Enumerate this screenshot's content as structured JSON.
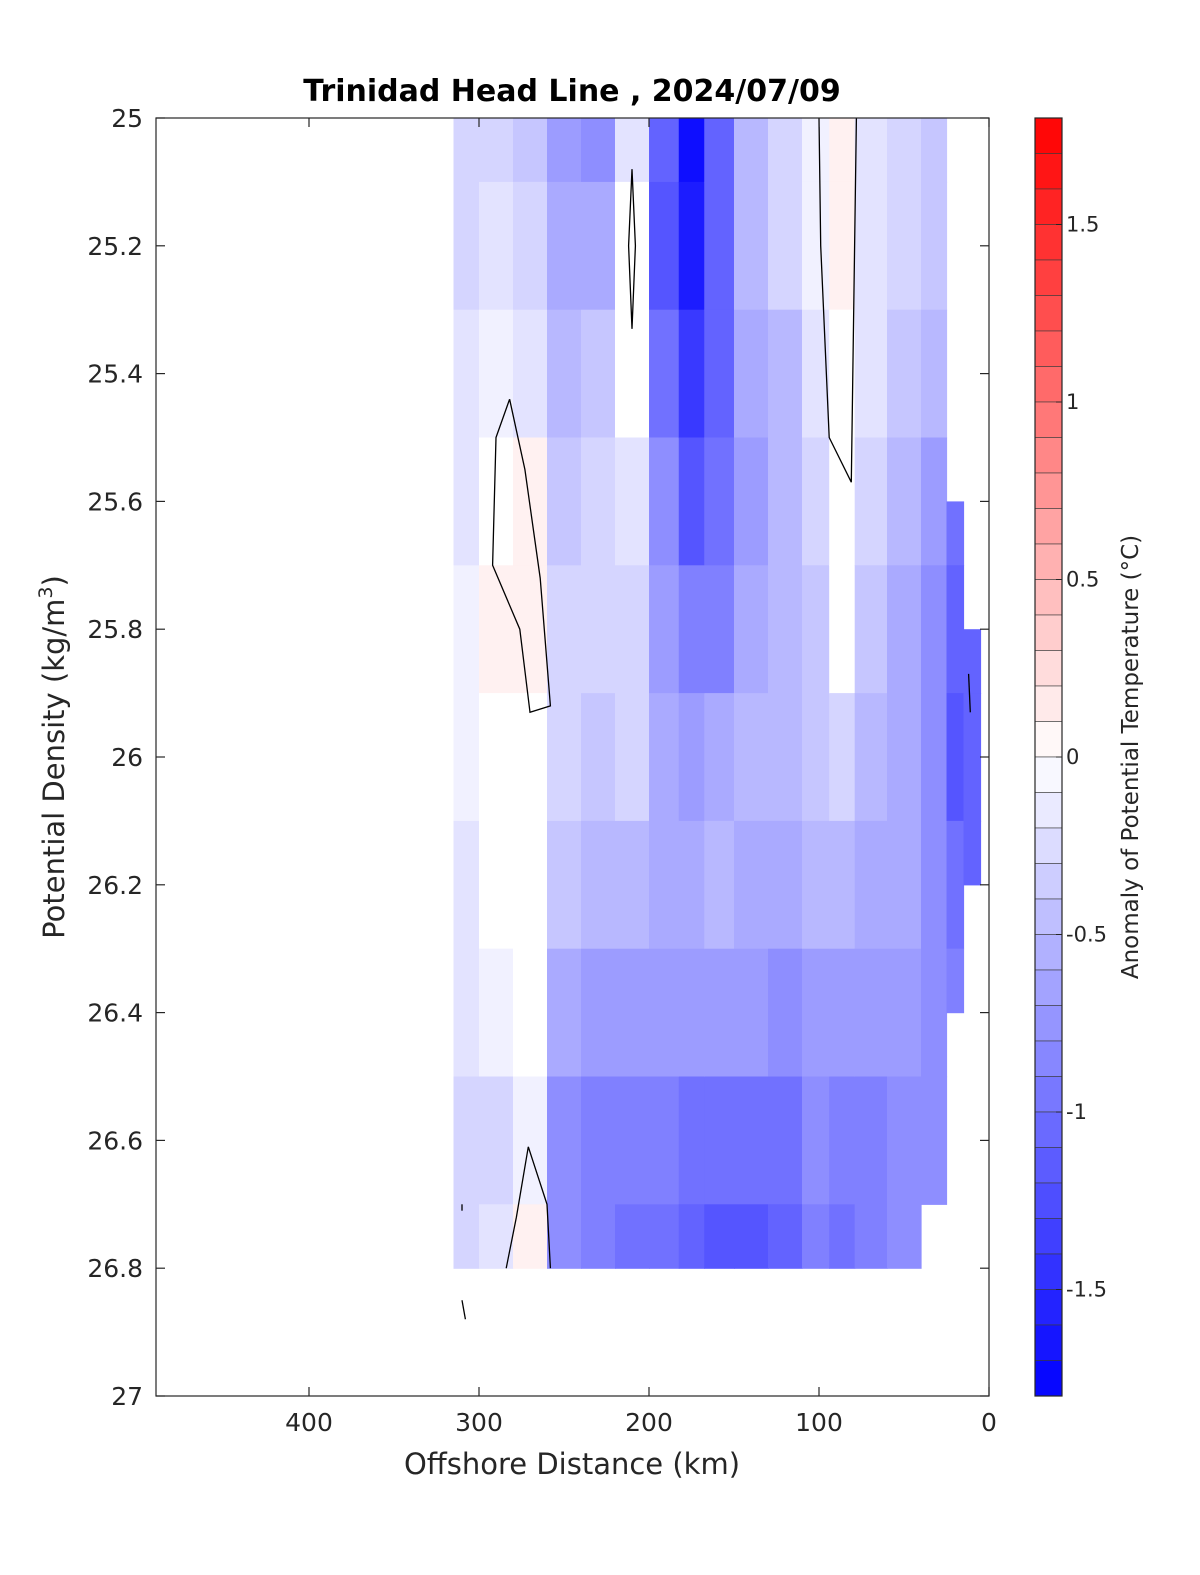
{
  "chart_data": {
    "type": "heatmap",
    "title": "Trinidad Head Line , 2024/07/09",
    "xlabel": "Offshore Distance (km)",
    "ylabel": "Potential Density (kg/m",
    "ylabel_sup": "3",
    "ylabel_end": ")",
    "colorbar_label": "Anomaly of Potential Temperature (°C)",
    "xlim": [
      490,
      0
    ],
    "ylim": [
      25,
      27
    ],
    "x_reversed": true,
    "y_reversed": true,
    "xticks": [
      400,
      300,
      200,
      100,
      0
    ],
    "xtick_labels": [
      "400",
      "300",
      "200",
      "100",
      "0"
    ],
    "yticks": [
      25,
      25.2,
      25.4,
      25.6,
      25.8,
      26,
      26.2,
      26.4,
      26.6,
      26.8,
      27
    ],
    "ytick_labels": [
      "25",
      "25.2",
      "25.4",
      "25.6",
      "25.8",
      "26",
      "26.2",
      "26.4",
      "26.6",
      "26.8",
      "27"
    ],
    "colorbar": {
      "range": [
        -1.8,
        1.8
      ],
      "step": 0.1,
      "ticks": [
        1.5,
        1,
        0.5,
        0,
        -0.5,
        -1,
        -1.5
      ],
      "tick_labels": [
        "1.5",
        "1",
        "0.5",
        "0",
        "-0.5",
        "-1",
        "-1.5"
      ],
      "cold_color": "#0000ff",
      "warm_color": "#ff0000",
      "neutral_color": "#ffffff"
    },
    "grid": false,
    "columns": [
      {
        "x": 310,
        "top": 25.0,
        "bottom": 26.8,
        "values": [
          -0.35,
          -0.3,
          -0.25,
          -0.2,
          -0.15,
          -0.15,
          -0.2,
          -0.25,
          -0.3,
          -0.35,
          -0.35
        ]
      },
      {
        "x": 290,
        "top": 25.0,
        "bottom": 26.8,
        "values": [
          -0.3,
          -0.2,
          -0.1,
          0.0,
          0.05,
          0.0,
          -0.05,
          -0.15,
          -0.3,
          -0.2,
          -0.2
        ]
      },
      {
        "x": 270,
        "top": 25.0,
        "bottom": 26.8,
        "values": [
          -0.45,
          -0.35,
          -0.2,
          0.05,
          0.1,
          0.0,
          0.0,
          -0.05,
          -0.1,
          0.05,
          -0.05
        ]
      },
      {
        "x": 250,
        "top": 25.0,
        "bottom": 26.8,
        "values": [
          -0.7,
          -0.6,
          -0.5,
          -0.4,
          -0.35,
          -0.3,
          -0.4,
          -0.6,
          -0.8,
          -0.8,
          -0.7
        ]
      },
      {
        "x": 230,
        "top": 25.0,
        "bottom": 26.8,
        "values": [
          -0.8,
          -0.6,
          -0.4,
          -0.35,
          -0.3,
          -0.4,
          -0.55,
          -0.75,
          -0.9,
          -0.95,
          -0.9
        ]
      },
      {
        "x": 210,
        "top": 25.0,
        "bottom": 26.8,
        "values": [
          -0.25,
          0.0,
          0.0,
          -0.2,
          -0.3,
          -0.35,
          -0.5,
          -0.75,
          -0.9,
          -1.0,
          -1.0
        ]
      },
      {
        "x": 190,
        "top": 25.0,
        "bottom": 26.8,
        "values": [
          -1.1,
          -1.2,
          -1.0,
          -0.8,
          -0.7,
          -0.6,
          -0.6,
          -0.75,
          -0.95,
          -1.05,
          -1.05
        ]
      },
      {
        "x": 175,
        "top": 25.0,
        "bottom": 26.8,
        "values": [
          -1.7,
          -1.6,
          -1.4,
          -1.2,
          -0.9,
          -0.7,
          -0.6,
          -0.75,
          -1.0,
          -1.1,
          -1.05
        ]
      },
      {
        "x": 160,
        "top": 25.0,
        "bottom": 26.8,
        "values": [
          -1.1,
          -1.1,
          -1.1,
          -1.0,
          -0.9,
          -0.6,
          -0.55,
          -0.7,
          -1.0,
          -1.2,
          -1.1
        ]
      },
      {
        "x": 140,
        "top": 25.0,
        "bottom": 26.8,
        "values": [
          -0.5,
          -0.55,
          -0.6,
          -0.7,
          -0.6,
          -0.55,
          -0.6,
          -0.75,
          -1.05,
          -1.2,
          -1.1
        ]
      },
      {
        "x": 120,
        "top": 25.0,
        "bottom": 26.8,
        "values": [
          -0.3,
          -0.35,
          -0.5,
          -0.55,
          -0.5,
          -0.5,
          -0.6,
          -0.8,
          -1.0,
          -1.1,
          -1.0
        ]
      },
      {
        "x": 100,
        "top": 25.0,
        "bottom": 26.8,
        "values": [
          -0.1,
          -0.1,
          -0.2,
          -0.3,
          -0.4,
          -0.45,
          -0.55,
          -0.7,
          -0.85,
          -0.95,
          -0.9
        ]
      },
      {
        "x": 88,
        "top": 25.0,
        "bottom": 26.8,
        "values": [
          0.1,
          0.05,
          0.0,
          0.0,
          -0.05,
          -0.3,
          -0.5,
          -0.7,
          -0.9,
          -1.0,
          -0.95
        ]
      },
      {
        "x": 70,
        "top": 25.0,
        "bottom": 26.8,
        "values": [
          -0.2,
          -0.2,
          -0.25,
          -0.3,
          -0.4,
          -0.5,
          -0.6,
          -0.75,
          -0.9,
          -0.95,
          -0.9
        ]
      },
      {
        "x": 50,
        "top": 25.0,
        "bottom": 26.8,
        "values": [
          -0.3,
          -0.35,
          -0.4,
          -0.5,
          -0.6,
          -0.6,
          -0.65,
          -0.75,
          -0.85,
          -0.85,
          -0.8
        ]
      },
      {
        "x": 30,
        "top": 25.0,
        "bottom": 26.7,
        "values": [
          -0.4,
          -0.45,
          -0.55,
          -0.7,
          -0.8,
          -0.85,
          -0.8,
          -0.8,
          -0.8,
          -0.8,
          -0.8
        ]
      },
      {
        "x": 20,
        "top": 25.6,
        "bottom": 26.4,
        "values": [
          -0.8,
          -0.85,
          -0.9,
          -1.0,
          -1.1,
          -1.2,
          -1.05,
          -0.9,
          -0.8,
          -0.8,
          -0.8
        ]
      },
      {
        "x": 10,
        "top": 25.8,
        "bottom": 26.2,
        "values": [
          -0.8,
          -0.85,
          -0.9,
          -1.0,
          -1.1,
          -1.15,
          -1.1,
          -1.0,
          -0.9,
          -0.9,
          -0.9
        ]
      }
    ],
    "zero_contours": [
      {
        "points": [
          [
            210,
            25.08
          ],
          [
            212,
            25.2
          ],
          [
            210,
            25.33
          ],
          [
            208,
            25.2
          ],
          [
            210,
            25.08
          ]
        ]
      },
      {
        "points": [
          [
            282,
            25.44
          ],
          [
            273,
            25.55
          ],
          [
            264,
            25.72
          ],
          [
            258,
            25.92
          ],
          [
            270,
            25.93
          ],
          [
            276,
            25.8
          ],
          [
            292,
            25.7
          ],
          [
            290,
            25.5
          ],
          [
            282,
            25.44
          ]
        ]
      },
      {
        "points": [
          [
            100,
            25.0
          ],
          [
            99,
            25.2
          ],
          [
            94,
            25.5
          ],
          [
            81,
            25.57
          ],
          [
            78,
            25.0
          ]
        ]
      },
      {
        "points": [
          [
            271,
            26.61
          ],
          [
            260,
            26.7
          ],
          [
            258,
            26.8
          ]
        ]
      },
      {
        "points": [
          [
            284,
            26.8
          ],
          [
            278,
            26.72
          ],
          [
            271,
            26.61
          ]
        ]
      },
      {
        "points": [
          [
            12,
            25.87
          ],
          [
            11,
            25.93
          ]
        ]
      },
      {
        "points": [
          [
            310,
            26.7
          ],
          [
            310,
            26.71
          ]
        ]
      },
      {
        "points": [
          [
            310,
            26.85
          ],
          [
            308,
            26.88
          ]
        ]
      }
    ]
  }
}
